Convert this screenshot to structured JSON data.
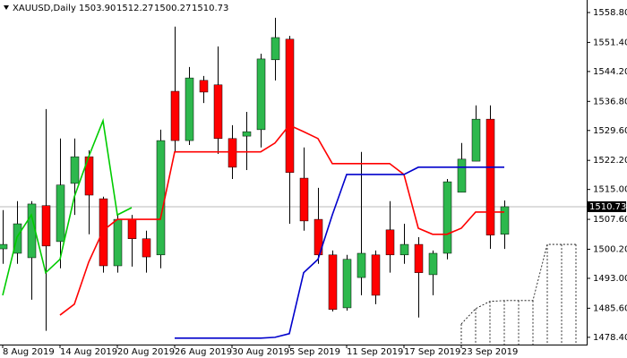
{
  "chart_data": {
    "type": "candlestick",
    "title": "XAUUSD,Daily",
    "info_labels": [
      "1503.90",
      "1512.27",
      "1500.27",
      "1510.73"
    ],
    "categories": [
      "8 Aug 2019",
      null,
      null,
      null,
      "14 Aug 2019",
      null,
      null,
      null,
      "20 Aug 2019",
      null,
      null,
      null,
      "26 Aug 2019",
      null,
      null,
      null,
      "30 Aug 2019",
      null,
      null,
      null,
      "5 Sep 2019",
      null,
      null,
      null,
      "11 Sep 2019",
      null,
      null,
      null,
      "17 Sep 2019",
      null,
      null,
      null,
      "23 Sep 2019",
      null,
      null,
      null
    ],
    "open": [
      1500.3,
      1499.2,
      1498.1,
      1511.0,
      1502.1,
      1516.5,
      1523.1,
      1512.7,
      1496.1,
      1507.6,
      1502.8,
      1498.8,
      1539.3,
      1527.1,
      1542.0,
      1540.9,
      1527.6,
      1528.2,
      1529.8,
      1547.1,
      1552.2,
      1517.8,
      1507.6,
      1498.8,
      1485.7,
      1493.2,
      1498.8,
      1505.0,
      1498.8,
      1501.4,
      1493.9,
      1499.2,
      1514.3,
      1522.0,
      1532.4,
      1503.9
    ],
    "high": [
      1509.9,
      1512.1,
      1512.1,
      1534.9,
      1527.6,
      1527.6,
      1524.7,
      1513.2,
      1508.7,
      1508.7,
      1504.8,
      1529.8,
      1555.3,
      1545.3,
      1543.1,
      1550.4,
      1530.9,
      1534.2,
      1548.6,
      1557.5,
      1553.0,
      1525.4,
      1515.4,
      1499.9,
      1498.8,
      1524.3,
      1499.9,
      1512.1,
      1506.5,
      1503.2,
      1499.9,
      1517.6,
      1526.5,
      1535.8,
      1535.8,
      1512.27
    ],
    "low": [
      1496.6,
      1496.6,
      1487.7,
      1480.0,
      1495.5,
      1508.7,
      1503.9,
      1494.4,
      1494.4,
      1495.9,
      1494.4,
      1495.5,
      1524.3,
      1526.0,
      1536.4,
      1523.8,
      1517.6,
      1519.8,
      1525.4,
      1542.0,
      1506.5,
      1504.8,
      1496.6,
      1484.8,
      1485.0,
      1488.8,
      1486.6,
      1494.4,
      1496.6,
      1483.3,
      1488.8,
      1497.7,
      1514.3,
      1522.0,
      1500.3,
      1500.27
    ],
    "close": [
      1501.4,
      1506.5,
      1511.4,
      1501.0,
      1516.1,
      1523.1,
      1513.6,
      1496.1,
      1507.6,
      1502.8,
      1498.3,
      1527.1,
      1527.1,
      1542.6,
      1539.1,
      1527.6,
      1520.5,
      1529.3,
      1547.3,
      1552.6,
      1519.2,
      1507.2,
      1498.8,
      1485.3,
      1497.7,
      1499.2,
      1488.8,
      1498.8,
      1501.4,
      1494.4,
      1499.2,
      1516.9,
      1522.5,
      1532.4,
      1503.7,
      1510.73
    ],
    "up_color": "#2db84d",
    "down_color": "#ff0000",
    "lines": [
      {
        "color": "#ff0000",
        "values": [
          null,
          null,
          null,
          null,
          1483.9,
          1486.6,
          1497.0,
          1504.8,
          1507.6,
          1507.6,
          1507.6,
          1507.6,
          1524.3,
          1524.3,
          1524.3,
          1524.3,
          1524.3,
          1524.3,
          1524.3,
          1526.5,
          1530.9,
          1529.3,
          1527.6,
          1521.4,
          1521.4,
          1521.4,
          1521.4,
          1521.4,
          1518.7,
          1505.4,
          1503.9,
          1503.9,
          1505.4,
          1509.4,
          1509.4,
          1509.4
        ]
      },
      {
        "color": "#0000cc",
        "values": [
          null,
          null,
          null,
          null,
          null,
          null,
          null,
          null,
          null,
          null,
          null,
          null,
          1478.2,
          1478.2,
          1478.2,
          1478.2,
          1478.2,
          1478.2,
          1478.2,
          1478.4,
          1479.3,
          1494.4,
          1497.7,
          1508.7,
          1518.7,
          1518.7,
          1518.7,
          1518.7,
          1518.7,
          1520.5,
          1520.5,
          1520.5,
          1520.5,
          1520.5,
          1520.5,
          1520.5
        ]
      },
      {
        "color": "#00cc00",
        "values": [
          1488.8,
          1503.2,
          1508.7,
          1494.4,
          1497.7,
          1513.2,
          1523.1,
          1532.0,
          1508.7,
          1510.5,
          null,
          null,
          null,
          null,
          null,
          null,
          null,
          null,
          null,
          null,
          null,
          null,
          null,
          null,
          null,
          null,
          null,
          null,
          null,
          null,
          null,
          null,
          null,
          null,
          null,
          null
        ]
      }
    ],
    "cloud": {
      "color": "#000000",
      "values": [
        null,
        null,
        null,
        null,
        null,
        null,
        null,
        null,
        null,
        null,
        null,
        null,
        null,
        null,
        null,
        null,
        null,
        null,
        null,
        null,
        null,
        null,
        null,
        null,
        null,
        null,
        null,
        null,
        null,
        null,
        null,
        null,
        1481.7,
        1485.5,
        1487.3,
        1487.5,
        1487.5,
        1487.5,
        1501.4,
        1501.4,
        1501.4
      ]
    },
    "ylim": [
      1476.6,
      1561.9
    ],
    "yticks": [
      {
        "value": 1558.8,
        "label": "1558.80"
      },
      {
        "value": 1551.4,
        "label": "1551.40"
      },
      {
        "value": 1544.2,
        "label": "1544.20"
      },
      {
        "value": 1536.8,
        "label": "1536.80"
      },
      {
        "value": 1529.6,
        "label": "1529.60"
      },
      {
        "value": 1522.2,
        "label": "1522.20"
      },
      {
        "value": 1515,
        "label": "1515.00"
      },
      {
        "value": 1507.6,
        "label": "1507.60"
      },
      {
        "value": 1500.2,
        "label": "1500.20"
      },
      {
        "value": 1493,
        "label": "1493.00"
      },
      {
        "value": 1485.6,
        "label": "1485.60"
      },
      {
        "value": 1478.4,
        "label": "1478.40"
      }
    ]
  }
}
